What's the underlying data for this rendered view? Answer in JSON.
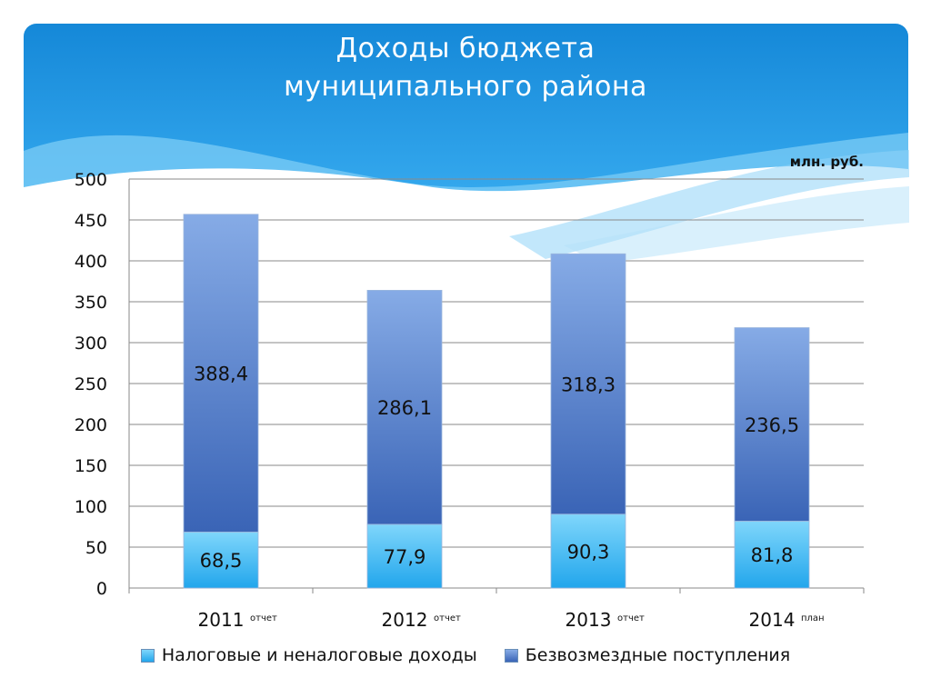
{
  "title_line1": "Доходы   бюджета",
  "title_line2": "муниципального района",
  "unit_label": "млн. руб.",
  "colors": {
    "tax_series": "#4fc3f7",
    "grant_series": "#4f7fce",
    "header_bg": "#1a94e0"
  },
  "chart_data": {
    "type": "bar",
    "stacked": true,
    "categories": [
      "2011",
      "2012",
      "2013",
      "2014"
    ],
    "category_notes": [
      "отчет",
      "отчет",
      "отчет",
      "план"
    ],
    "series": [
      {
        "name": "Налоговые и неналоговые доходы",
        "values": [
          68.5,
          77.9,
          90.3,
          81.8
        ],
        "labels": [
          "68,5",
          "77,9",
          "90,3",
          "81,8"
        ]
      },
      {
        "name": "Безвозмездные поступления",
        "values": [
          388.4,
          286.1,
          318.3,
          236.5
        ],
        "labels": [
          "388,4",
          "286,1",
          "318,3",
          "236,5"
        ]
      }
    ],
    "ylim": [
      0,
      500
    ],
    "yticks": [
      0,
      50,
      100,
      150,
      200,
      250,
      300,
      350,
      400,
      450,
      500
    ],
    "grid": true,
    "legend_position": "bottom"
  }
}
